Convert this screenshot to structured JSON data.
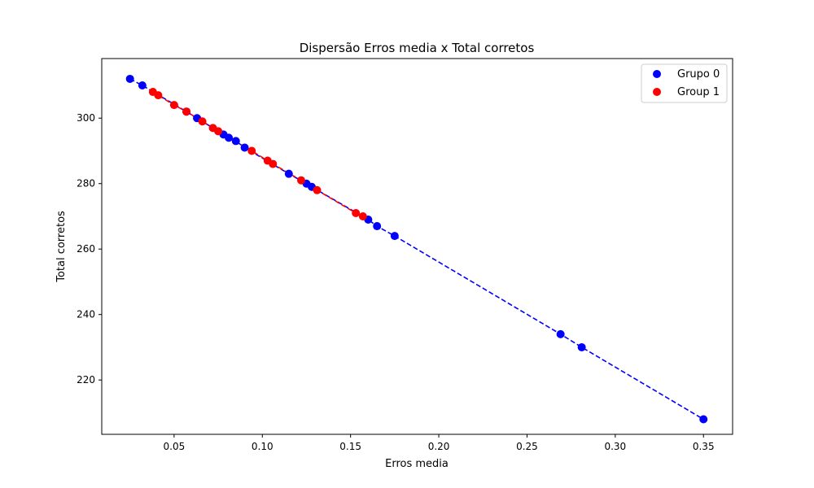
{
  "chart_data": {
    "type": "scatter",
    "title": "Dispersão Erros media x Total corretos",
    "xlabel": "Erros media",
    "ylabel": "Total corretos",
    "xlim": [
      0.009,
      0.3665
    ],
    "ylim": [
      203.4,
      318.2
    ],
    "xticks": [
      0.05,
      0.1,
      0.15,
      0.2,
      0.25,
      0.3,
      0.35
    ],
    "xtick_labels": [
      "0.05",
      "0.10",
      "0.15",
      "0.20",
      "0.25",
      "0.30",
      "0.35"
    ],
    "yticks": [
      220,
      240,
      260,
      280,
      300
    ],
    "ytick_labels": [
      "220",
      "240",
      "260",
      "280",
      "300"
    ],
    "grid": false,
    "legend": "top-right",
    "series": [
      {
        "name": "Grupo 0",
        "color": "#0000ff",
        "x": [
          0.025,
          0.032,
          0.057,
          0.063,
          0.078,
          0.081,
          0.085,
          0.09,
          0.115,
          0.125,
          0.128,
          0.16,
          0.165,
          0.175,
          0.269,
          0.281,
          0.35
        ],
        "y": [
          312,
          310,
          302,
          300,
          295,
          294,
          293,
          291,
          283,
          280,
          279,
          269,
          267,
          264,
          234,
          230,
          208
        ]
      },
      {
        "name": "Group 1",
        "color": "#ff0000",
        "x": [
          0.038,
          0.041,
          0.05,
          0.057,
          0.066,
          0.072,
          0.075,
          0.094,
          0.103,
          0.106,
          0.122,
          0.131,
          0.153,
          0.157
        ],
        "y": [
          308,
          307,
          304,
          302,
          299,
          297,
          296,
          290,
          287,
          286,
          281,
          278,
          271,
          270
        ]
      }
    ]
  }
}
